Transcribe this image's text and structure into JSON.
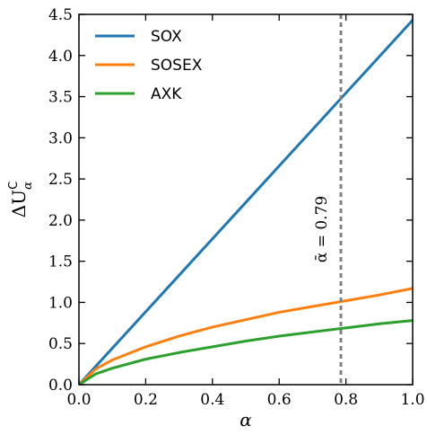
{
  "chart_data": {
    "type": "line",
    "xlabel": "α",
    "ylabel_main": "ΔU",
    "ylabel_sup": "C",
    "ylabel_sub": "α",
    "xlim": [
      0,
      1
    ],
    "ylim": [
      0,
      4.5
    ],
    "xticks": [
      0.0,
      0.2,
      0.4,
      0.6,
      0.8,
      1.0
    ],
    "xtick_labels": [
      "0.0",
      "0.2",
      "0.4",
      "0.6",
      "0.8",
      "1.0"
    ],
    "yticks": [
      0.0,
      0.5,
      1.0,
      1.5,
      2.0,
      2.5,
      3.0,
      3.5,
      4.0,
      4.5
    ],
    "ytick_labels": [
      "0.0",
      "0.5",
      "1.0",
      "1.5",
      "2.0",
      "2.5",
      "3.0",
      "3.5",
      "4.0",
      "4.5"
    ],
    "legend_position": "top-left",
    "grid": false,
    "series": [
      {
        "name": "SOX",
        "color": "#1f77b4",
        "x": [
          0.0,
          0.1,
          0.2,
          0.3,
          0.4,
          0.5,
          0.6,
          0.7,
          0.8,
          0.9,
          1.0
        ],
        "y": [
          0.0,
          0.443,
          0.886,
          1.329,
          1.772,
          2.215,
          2.658,
          3.101,
          3.544,
          3.987,
          4.43
        ]
      },
      {
        "name": "SOSEX",
        "color": "#ff7f0e",
        "x": [
          0.0,
          0.05,
          0.1,
          0.2,
          0.3,
          0.4,
          0.5,
          0.6,
          0.7,
          0.8,
          0.9,
          1.0
        ],
        "y": [
          0.0,
          0.19,
          0.3,
          0.46,
          0.59,
          0.7,
          0.79,
          0.88,
          0.95,
          1.02,
          1.09,
          1.17
        ]
      },
      {
        "name": "AXK",
        "color": "#2ca02c",
        "x": [
          0.0,
          0.05,
          0.1,
          0.2,
          0.3,
          0.4,
          0.5,
          0.6,
          0.7,
          0.8,
          0.9,
          1.0
        ],
        "y": [
          0.0,
          0.13,
          0.2,
          0.31,
          0.39,
          0.46,
          0.53,
          0.59,
          0.64,
          0.69,
          0.74,
          0.78
        ]
      }
    ],
    "vline": {
      "x": 0.785,
      "color": "#808080",
      "label": "ᾱ = 0.79"
    }
  }
}
